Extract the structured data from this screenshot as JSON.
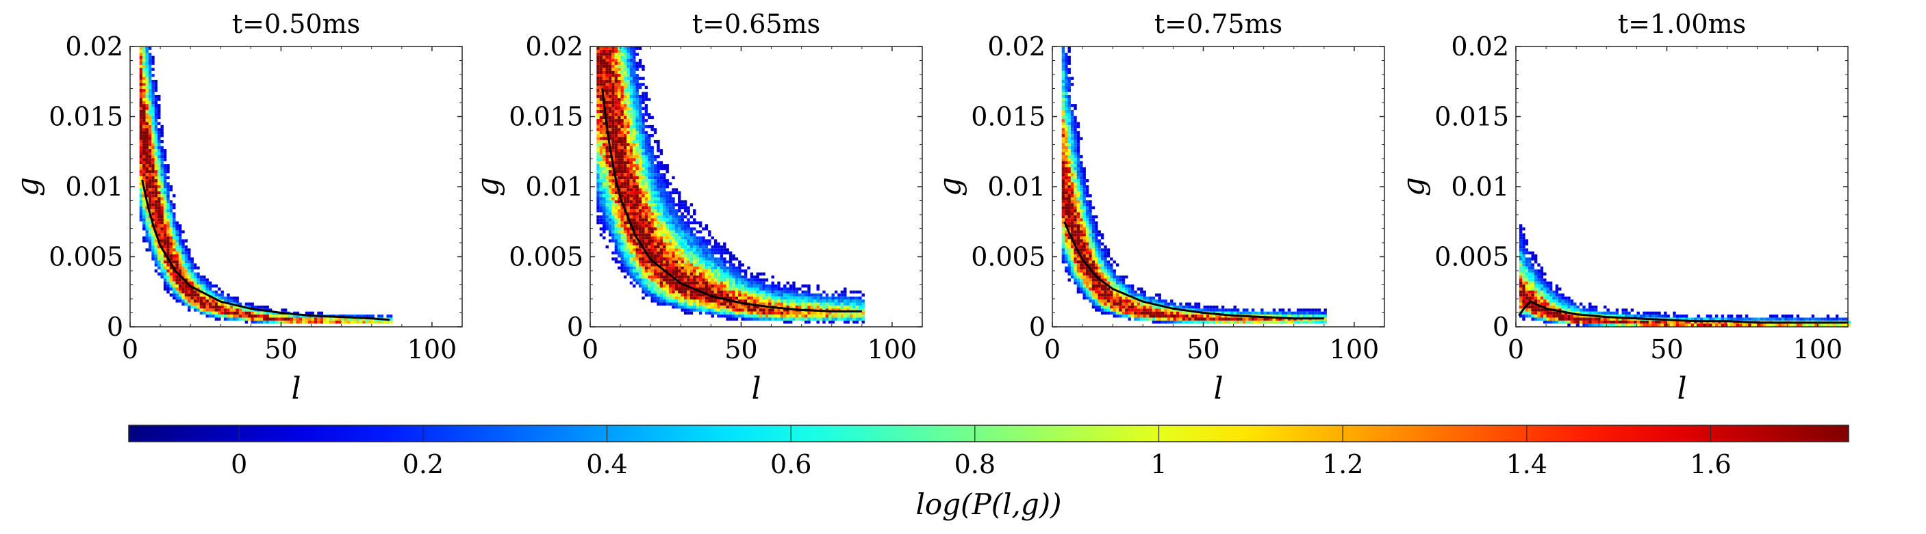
{
  "chart_data": [
    {
      "type": "heatmap",
      "title": "t=0.50ms",
      "xlabel": "l",
      "ylabel": "g",
      "xlim": [
        0,
        110
      ],
      "ylim": [
        0,
        0.02
      ],
      "xticks": [
        "0",
        "50",
        "100"
      ],
      "yticks": [
        "0",
        "0.005",
        "0.01",
        "0.015",
        "0.02"
      ],
      "density": {
        "decay": 10,
        "amp": 0.0125,
        "floor": 0.0005,
        "l_min": 3,
        "l_max": 86,
        "spread": 0.32
      },
      "mean_curve": {
        "l": [
          4,
          6,
          8,
          10,
          15,
          20,
          30,
          40,
          50,
          60,
          70,
          80,
          86
        ],
        "g": [
          0.0105,
          0.0085,
          0.007,
          0.0058,
          0.004,
          0.0029,
          0.0018,
          0.0013,
          0.001,
          0.0008,
          0.0007,
          0.0006,
          0.0005
        ]
      }
    },
    {
      "type": "heatmap",
      "title": "t=0.65ms",
      "xlabel": "l",
      "ylabel": "g",
      "xlim": [
        0,
        110
      ],
      "ylim": [
        0,
        0.02
      ],
      "xticks": [
        "0",
        "50",
        "100"
      ],
      "yticks": [
        "0",
        "0.005",
        "0.01",
        "0.015",
        "0.02"
      ],
      "density": {
        "decay": 14,
        "amp": 0.018,
        "floor": 0.001,
        "l_min": 2,
        "l_max": 90,
        "spread": 0.45
      },
      "mean_curve": {
        "l": [
          4,
          6,
          8,
          10,
          15,
          20,
          30,
          40,
          50,
          60,
          70,
          80,
          90
        ],
        "g": [
          0.017,
          0.0135,
          0.011,
          0.0092,
          0.0065,
          0.0048,
          0.0031,
          0.0022,
          0.0017,
          0.0014,
          0.0012,
          0.0011,
          0.0011
        ]
      }
    },
    {
      "type": "heatmap",
      "title": "t=0.75ms",
      "xlabel": "l",
      "ylabel": "g",
      "xlim": [
        0,
        110
      ],
      "ylim": [
        0,
        0.02
      ],
      "xticks": [
        "0",
        "50",
        "100"
      ],
      "yticks": [
        "0",
        "0.005",
        "0.01",
        "0.015",
        "0.02"
      ],
      "density": {
        "decay": 10,
        "amp": 0.0085,
        "floor": 0.0006,
        "l_min": 3,
        "l_max": 90,
        "spread": 0.38
      },
      "mean_curve": {
        "l": [
          4,
          6,
          8,
          10,
          15,
          20,
          30,
          40,
          50,
          60,
          70,
          80,
          90
        ],
        "g": [
          0.0075,
          0.0065,
          0.0056,
          0.0048,
          0.0035,
          0.0027,
          0.0018,
          0.0013,
          0.001,
          0.0008,
          0.0007,
          0.0006,
          0.0006
        ]
      }
    },
    {
      "type": "heatmap",
      "title": "t=1.00ms",
      "xlabel": "l",
      "ylabel": "g",
      "xlim": [
        0,
        110
      ],
      "ylim": [
        0,
        0.02
      ],
      "xticks": [
        "0",
        "50",
        "100"
      ],
      "yticks": [
        "0",
        "0.005",
        "0.01",
        "0.015",
        "0.02"
      ],
      "density": {
        "decay": 12,
        "amp": 0.0018,
        "floor": 0.0003,
        "l_min": 1,
        "l_max": 110,
        "spread": 0.5
      },
      "mean_curve": {
        "l": [
          1,
          3,
          5,
          8,
          10,
          15,
          20,
          30,
          40,
          50,
          60,
          70,
          80,
          90,
          100,
          110
        ],
        "g": [
          0.0008,
          0.0014,
          0.0018,
          0.0015,
          0.0013,
          0.0011,
          0.0009,
          0.0007,
          0.0006,
          0.0005,
          0.0004,
          0.0004,
          0.0003,
          0.0003,
          0.0003,
          0.0003
        ]
      }
    }
  ],
  "colorbar": {
    "label": "log(P(l,g))",
    "range": [
      -0.12,
      1.75
    ],
    "ticks": [
      "0",
      "0.2",
      "0.4",
      "0.6",
      "0.8",
      "1",
      "1.2",
      "1.4",
      "1.6"
    ],
    "tick_values": [
      0,
      0.2,
      0.4,
      0.6,
      0.8,
      1.0,
      1.2,
      1.4,
      1.6
    ],
    "colormap": "jet"
  }
}
